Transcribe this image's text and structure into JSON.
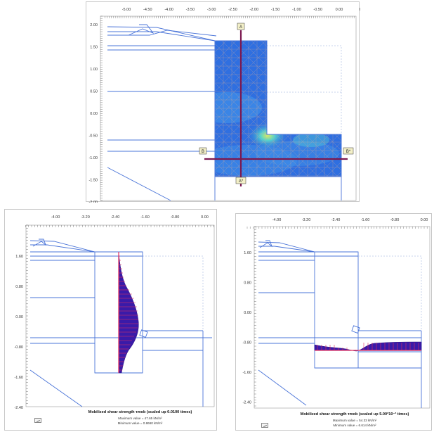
{
  "colors": {
    "geometry": "#4a74d8",
    "mesh_fill": "#2f6fe0",
    "mesh_lines": "#c9a7a0",
    "cross_section": "#7b1850",
    "diagram_fill": "#3a1aa8",
    "diagram_hatch": "#e03060",
    "background": "#ffffff"
  },
  "top_panel": {
    "x_ticks": [
      "-5.00",
      "-4.50",
      "-4.00",
      "-3.50",
      "-3.00",
      "-2.50",
      "-2.00",
      "-1.50",
      "-1.00",
      "-0.50",
      "0.00",
      "0"
    ],
    "y_ticks": [
      "2.00",
      "1.50",
      "1.00",
      "0.50",
      "0.00",
      "-0.50",
      "-1.00",
      "-1.50",
      "-2.00"
    ],
    "sections": {
      "a": "A",
      "a_star": "A*",
      "b": "B",
      "b_star": "B*"
    }
  },
  "left_panel": {
    "x_ticks": [
      "-4.00",
      "-3.20",
      "-2.40",
      "-1.60",
      "-0.80",
      "0.00"
    ],
    "y_ticks": [
      "1.60",
      "0.80",
      "0.00",
      "-0.80",
      "-1.60",
      "-2.40"
    ],
    "caption": {
      "title": "Mobilized shear strength τmob (scaled up 0.0100 times)",
      "max_value": "Maximum value = 47.65 kN/m²",
      "min_value": "Minimum value = 0.8660 kN/m²"
    }
  },
  "right_panel": {
    "x_ticks": [
      "-4.00",
      "-3.20",
      "-2.40",
      "-1.60",
      "-0.80",
      "0.00"
    ],
    "y_ticks": [
      "1.60",
      "0.80",
      "0.00",
      "-0.80",
      "-1.60",
      "-2.40"
    ],
    "caption": {
      "title": "Mobilized shear strength τmob (scaled up 5.00*10⁻³ times)",
      "max_value": "Maximum value = 54.33 kN/m²",
      "min_value": "Minimum value = 6.614 kN/m²"
    }
  }
}
